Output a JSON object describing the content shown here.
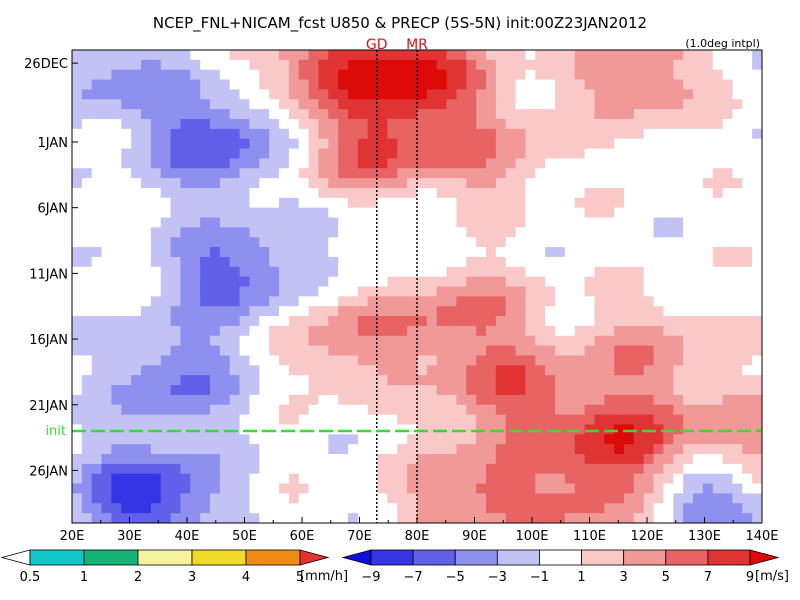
{
  "chart_data": {
    "type": "heatmap",
    "title": "NCEP_FNL+NICAM_fcst U850 & PRECP (5S-5N) init:00Z23JAN2012",
    "subtitle": "(1.0deg intpl)",
    "x_ticks": [
      "20E",
      "30E",
      "40E",
      "50E",
      "60E",
      "70E",
      "80E",
      "90E",
      "100E",
      "110E",
      "120E",
      "130E",
      "140E"
    ],
    "xlim": [
      20,
      140
    ],
    "y_ticks": [
      "26DEC",
      "1JAN",
      "6JAN",
      "11JAN",
      "16JAN",
      "21JAN",
      "26JAN"
    ],
    "y_tick_days": [
      0,
      6,
      11,
      16,
      21,
      26,
      31
    ],
    "ylim": [
      -1,
      35
    ],
    "y_axis_reversed": true,
    "vertical_markers": [
      {
        "label": "GD",
        "lon": 73,
        "style": "dotted"
      },
      {
        "label": "MR",
        "lon": 80,
        "style": "dotted"
      }
    ],
    "init_line": {
      "label": "init",
      "day": 28,
      "color": "#33dd33"
    },
    "fields": {
      "u850": {
        "units": "[m/s]",
        "levels": [
          -9,
          -7,
          -5,
          -3,
          -1,
          1,
          3,
          5,
          7,
          9
        ],
        "level_labels": [
          "−9",
          "−7",
          "−5",
          "−3",
          "−1",
          "1",
          "3",
          "5",
          "7",
          "9"
        ],
        "colors": [
          "#1010dd",
          "#3535e5",
          "#6060e8",
          "#8f8ff0",
          "#c2c2f5",
          "#ffffff",
          "#f9c8c8",
          "#f19898",
          "#e86464",
          "#e03434",
          "#dd0a0a"
        ],
        "blobs": [
          {
            "lon": 45,
            "day": 6,
            "value": -6.5
          },
          {
            "lon": 48,
            "day": 16,
            "value": -6
          },
          {
            "lon": 38,
            "day": 24,
            "value": -5
          },
          {
            "lon": 33,
            "day": 33,
            "value": -8
          },
          {
            "lon": 28,
            "day": 1,
            "value": -3.5
          },
          {
            "lon": 80,
            "day": 1,
            "value": 9
          },
          {
            "lon": 64,
            "day": 0,
            "value": 6
          },
          {
            "lon": 72,
            "day": 7,
            "value": 6
          },
          {
            "lon": 92,
            "day": 7,
            "value": 4
          },
          {
            "lon": 118,
            "day": 1,
            "value": 5
          },
          {
            "lon": 88,
            "day": 19,
            "value": 5
          },
          {
            "lon": 68,
            "day": 21,
            "value": 4.5
          },
          {
            "lon": 96,
            "day": 25,
            "value": 6
          },
          {
            "lon": 120,
            "day": 22,
            "value": 4
          },
          {
            "lon": 115,
            "day": 29,
            "value": 8
          },
          {
            "lon": 90,
            "day": 33,
            "value": 6
          },
          {
            "lon": 112,
            "day": 34,
            "value": 4
          },
          {
            "lon": 130,
            "day": 33,
            "value": -6
          },
          {
            "lon": 136,
            "day": 29,
            "value": 5
          },
          {
            "lon": 75,
            "day": 13,
            "value": -2
          }
        ]
      },
      "precip": {
        "units": "[mm/h]",
        "levels": [
          0.5,
          1,
          2,
          3,
          4,
          5
        ],
        "level_labels": [
          "0.5",
          "1",
          "2",
          "3",
          "4",
          "5"
        ],
        "colors": [
          "#ffffff",
          "#10c8c8",
          "#14b478",
          "#f4f4a0",
          "#f0dc28",
          "#f08c14",
          "#e43232"
        ]
      }
    }
  }
}
